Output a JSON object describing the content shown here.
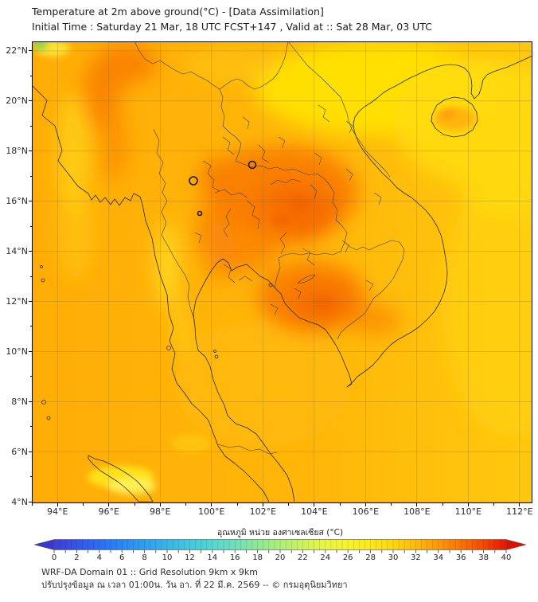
{
  "header": {
    "title_line1": "Temperature at 2m above ground(°C) - [Data Assimilation]",
    "title_line2": "Initial Time : Saturday 21 Mar, 18 UTC FCST+147 , Valid at :: Sat 28 Mar, 03 UTC"
  },
  "chart_data": {
    "type": "heatmap",
    "title": "Temperature at 2m above ground(°C) - [Data Assimilation]",
    "subtitle": "Initial Time : Saturday 21 Mar, 18 UTC FCST+147 , Valid at :: Sat 28 Mar, 03 UTC",
    "projection": "longitude-latitude map (Thailand / Indochina domain)",
    "grid": true,
    "x_axis": {
      "unit": "°E",
      "range": [
        93.0,
        112.5
      ],
      "major_ticks": [
        94,
        96,
        98,
        100,
        102,
        104,
        106,
        108,
        110,
        112
      ],
      "minor_step": 1
    },
    "y_axis": {
      "unit": "°N",
      "range": [
        3.94,
        22.38
      ],
      "major_ticks": [
        4,
        6,
        8,
        10,
        12,
        14,
        16,
        18,
        20,
        22
      ],
      "minor_step": 1
    },
    "colorbar": {
      "label": "อุณหภูมิ หน่วย องศาเซลเซียส (°C)",
      "range": [
        0,
        40
      ],
      "tick_step": 2,
      "ticks": [
        0,
        2,
        4,
        6,
        8,
        10,
        12,
        14,
        16,
        18,
        20,
        22,
        24,
        26,
        28,
        30,
        32,
        34,
        36,
        38,
        40
      ],
      "under_color": "#3a36cf",
      "over_color": "#e00f00",
      "stops": [
        {
          "value": 0,
          "color": "#3f3fd2"
        },
        {
          "value": 2,
          "color": "#3355e8"
        },
        {
          "value": 4,
          "color": "#2b6ef5"
        },
        {
          "value": 6,
          "color": "#2b87f5"
        },
        {
          "value": 8,
          "color": "#2f9ff0"
        },
        {
          "value": 10,
          "color": "#38b4e8"
        },
        {
          "value": 12,
          "color": "#44c8e0"
        },
        {
          "value": 14,
          "color": "#55d6d0"
        },
        {
          "value": 16,
          "color": "#6fe0b8"
        },
        {
          "value": 18,
          "color": "#8fe898"
        },
        {
          "value": 20,
          "color": "#aeee78"
        },
        {
          "value": 22,
          "color": "#cdf25c"
        },
        {
          "value": 24,
          "color": "#e8f544"
        },
        {
          "value": 26,
          "color": "#f8f22e"
        },
        {
          "value": 28,
          "color": "#fce81c"
        },
        {
          "value": 30,
          "color": "#fed60e"
        },
        {
          "value": 32,
          "color": "#ffb90a"
        },
        {
          "value": 34,
          "color": "#ff9708"
        },
        {
          "value": 36,
          "color": "#fb7203"
        },
        {
          "value": 38,
          "color": "#f34a01"
        },
        {
          "value": 40,
          "color": "#e81600"
        }
      ]
    },
    "field_summary": [
      {
        "region": "Northeast Thailand (Khorat Plateau)",
        "approx_temp_c": 36
      },
      {
        "region": "Cambodia / Tonle Sap basin",
        "approx_temp_c": 36
      },
      {
        "region": "Central Myanmar dry zone",
        "approx_temp_c": 35
      },
      {
        "region": "Central Thailand hot spots",
        "approx_temp_c": 35
      },
      {
        "region": "Andaman Sea",
        "approx_temp_c": 30
      },
      {
        "region": "Gulf of Thailand",
        "approx_temp_c": 30
      },
      {
        "region": "South China Sea (east of domain)",
        "approx_temp_c": 28
      },
      {
        "region": "Gulf of Tonkin / North Vietnam coast",
        "approx_temp_c": 26
      },
      {
        "region": "Hainan island interior",
        "approx_temp_c": 30
      },
      {
        "region": "Far northwest corner (green patch)",
        "approx_temp_c": 22
      },
      {
        "region": "Northern Sumatra (bright yellow band)",
        "approx_temp_c": 26
      }
    ]
  },
  "footer": {
    "line1": "WRF-DA Domain 01 :: Grid Resolution 9km x 9km",
    "line2": "ปรับปรุงข้อมูล ณ เวลา 01:00น. วัน อา. ที่ 22 มี.ค. 2569 -- © กรมอุตุนิยมวิทยา"
  }
}
